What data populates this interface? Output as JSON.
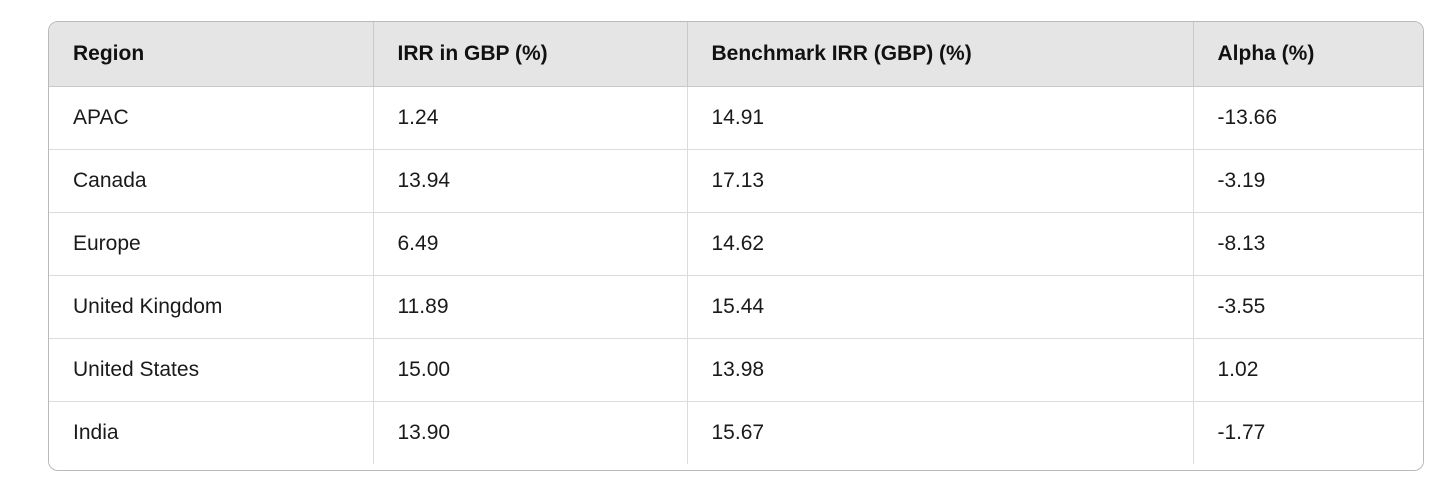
{
  "chart_data": {
    "type": "table",
    "columns": [
      "Region",
      "IRR in GBP (%)",
      "Benchmark IRR (GBP) (%)",
      "Alpha (%)"
    ],
    "rows": [
      [
        "APAC",
        "1.24",
        "14.91",
        "-13.66"
      ],
      [
        "Canada",
        "13.94",
        "17.13",
        "-3.19"
      ],
      [
        "Europe",
        "6.49",
        "14.62",
        "-8.13"
      ],
      [
        "United Kingdom",
        "11.89",
        "15.44",
        "-3.55"
      ],
      [
        "United States",
        "15.00",
        "13.98",
        "1.02"
      ],
      [
        "India",
        "13.90",
        "15.67",
        "-1.77"
      ]
    ]
  },
  "colors": {
    "page_background": "#ffffff",
    "header_background": "#e5e5e5",
    "outer_border": "#b9b9b9",
    "header_grid_line": "#c9c9c9",
    "body_grid_line": "#dcdcdc",
    "text": "#1a1a1a"
  }
}
